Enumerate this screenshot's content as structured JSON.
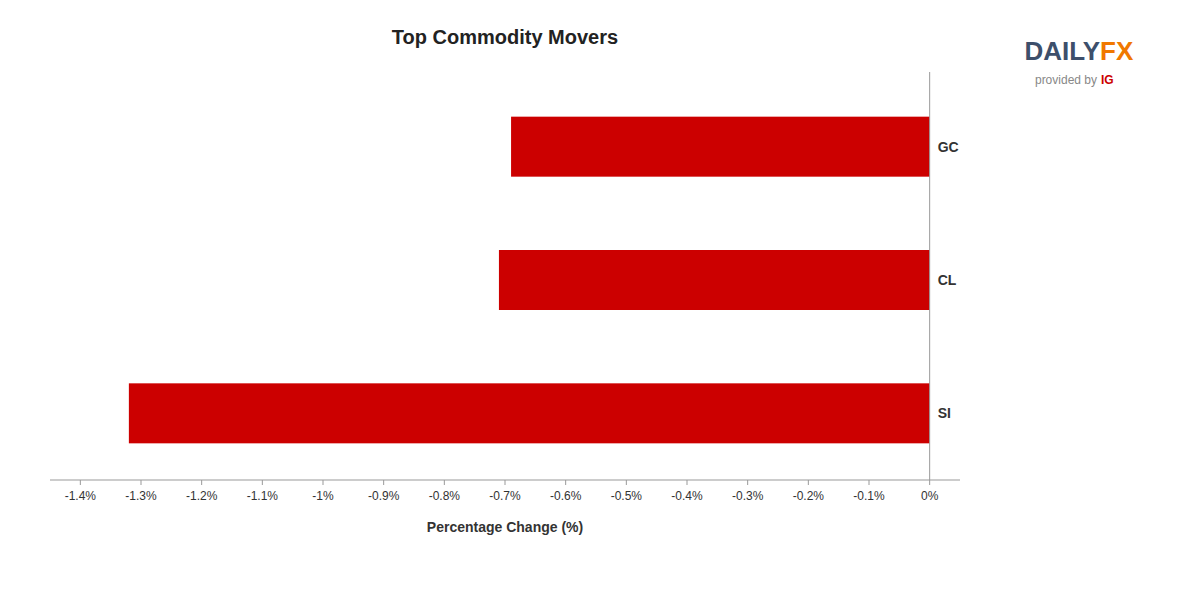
{
  "chart_data": {
    "type": "bar",
    "orientation": "horizontal",
    "title": "Top Commodity Movers",
    "x_label": "Percentage Change (%)",
    "categories": [
      "GC",
      "CL",
      "SI"
    ],
    "values": [
      -0.69,
      -0.71,
      -1.32
    ],
    "color": "#cc0000",
    "xlim": [
      -1.45,
      0.05
    ],
    "xticks": [
      {
        "value": -1.4,
        "label": "-1.4%"
      },
      {
        "value": -1.3,
        "label": "-1.3%"
      },
      {
        "value": -1.2,
        "label": "-1.2%"
      },
      {
        "value": -1.1,
        "label": "-1.1%"
      },
      {
        "value": -1.0,
        "label": "-1%"
      },
      {
        "value": -0.9,
        "label": "-0.9%"
      },
      {
        "value": -0.8,
        "label": "-0.8%"
      },
      {
        "value": -0.7,
        "label": "-0.7%"
      },
      {
        "value": -0.6,
        "label": "-0.6%"
      },
      {
        "value": -0.5,
        "label": "-0.5%"
      },
      {
        "value": -0.4,
        "label": "-0.4%"
      },
      {
        "value": -0.3,
        "label": "-0.3%"
      },
      {
        "value": -0.2,
        "label": "-0.2%"
      },
      {
        "value": -0.1,
        "label": "-0.1%"
      },
      {
        "value": 0.0,
        "label": "0%"
      }
    ],
    "grid": false,
    "annotations": [
      {
        "text": "DAILY",
        "color": "#3d4f6b"
      },
      {
        "text": "FX",
        "color": "#f07800"
      },
      {
        "text": "provided by",
        "color": "#888888"
      },
      {
        "text": "IG",
        "color": "#cc0000"
      }
    ]
  }
}
